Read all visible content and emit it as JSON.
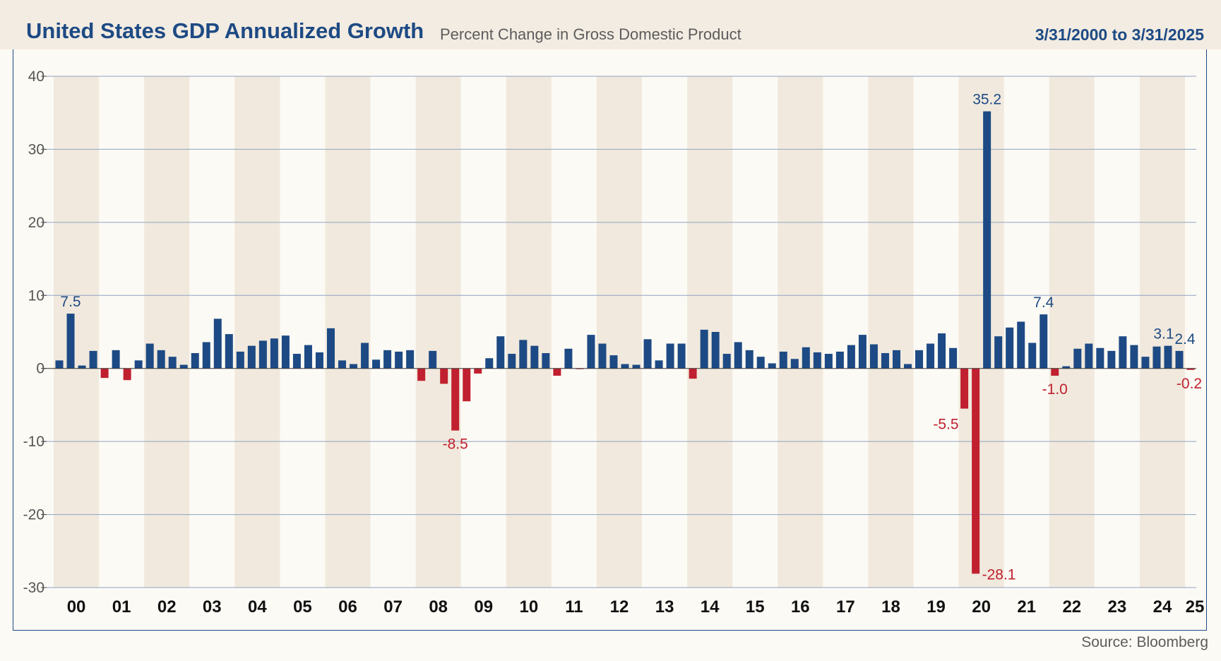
{
  "header": {
    "title": "United States GDP Annualized Growth",
    "subtitle": "Percent Change in Gross Domestic Product",
    "date_range": "3/31/2000 to 3/31/2025"
  },
  "footer": {
    "source": "Source: Bloomberg"
  },
  "colors": {
    "positive": "#1d4a84",
    "negative": "#c0202f",
    "band": "#f1e9dd",
    "background": "#fcfaf5",
    "grid": "#8fa3c2"
  },
  "chart_data": {
    "type": "bar",
    "title": "United States GDP Annualized Growth",
    "subtitle": "Percent Change in Gross Domestic Product",
    "ylim": [
      -30,
      40
    ],
    "yticks": [
      40,
      30,
      20,
      10,
      0,
      -10,
      -20,
      -30
    ],
    "ytick_labels": [
      "40",
      "30",
      "20",
      "10",
      "0",
      "-10",
      "-20",
      "-30"
    ],
    "grid": true,
    "x_start": "2000-Q1",
    "year_labels": [
      "00",
      "01",
      "02",
      "03",
      "04",
      "05",
      "06",
      "07",
      "08",
      "09",
      "10",
      "11",
      "12",
      "13",
      "14",
      "15",
      "16",
      "17",
      "18",
      "19",
      "20",
      "21",
      "22",
      "23",
      "24",
      "25"
    ],
    "values": [
      1.1,
      7.5,
      0.4,
      2.4,
      -1.3,
      2.5,
      -1.6,
      1.1,
      3.4,
      2.5,
      1.6,
      0.5,
      2.1,
      3.6,
      6.8,
      4.7,
      2.3,
      3.1,
      3.8,
      4.1,
      4.5,
      2.0,
      3.2,
      2.2,
      5.5,
      1.1,
      0.6,
      3.5,
      1.2,
      2.5,
      2.3,
      2.5,
      -1.7,
      2.4,
      -2.1,
      -8.5,
      -4.5,
      -0.7,
      1.4,
      4.4,
      2.0,
      3.9,
      3.1,
      2.1,
      -1.0,
      2.7,
      -0.1,
      4.6,
      3.4,
      1.8,
      0.6,
      0.5,
      4.0,
      1.1,
      3.4,
      3.4,
      -1.4,
      5.3,
      5.0,
      2.0,
      3.6,
      2.5,
      1.6,
      0.7,
      2.3,
      1.3,
      2.9,
      2.2,
      2.0,
      2.3,
      3.2,
      4.6,
      3.3,
      2.1,
      2.5,
      0.6,
      2.5,
      3.4,
      4.8,
      2.8,
      -5.5,
      -28.1,
      35.2,
      4.4,
      5.6,
      6.4,
      3.5,
      7.4,
      -1.0,
      0.3,
      2.7,
      3.4,
      2.8,
      2.4,
      4.4,
      3.2,
      1.6,
      3.0,
      3.1,
      2.4,
      -0.2
    ],
    "data_labels": [
      {
        "index": 1,
        "text": "7.5",
        "position": "above"
      },
      {
        "index": 35,
        "text": "-8.5",
        "position": "below"
      },
      {
        "index": 80,
        "text": "-5.5",
        "position": "below-left"
      },
      {
        "index": 81,
        "text": "-28.1",
        "position": "right"
      },
      {
        "index": 82,
        "text": "35.2",
        "position": "above"
      },
      {
        "index": 87,
        "text": "7.4",
        "position": "above"
      },
      {
        "index": 88,
        "text": "-1.0",
        "position": "below"
      },
      {
        "index": 98,
        "text": "3.1",
        "position": "above"
      },
      {
        "index": 99,
        "text": "2.4",
        "position": "above"
      },
      {
        "index": 100,
        "text": "-0.2",
        "position": "below"
      }
    ]
  }
}
